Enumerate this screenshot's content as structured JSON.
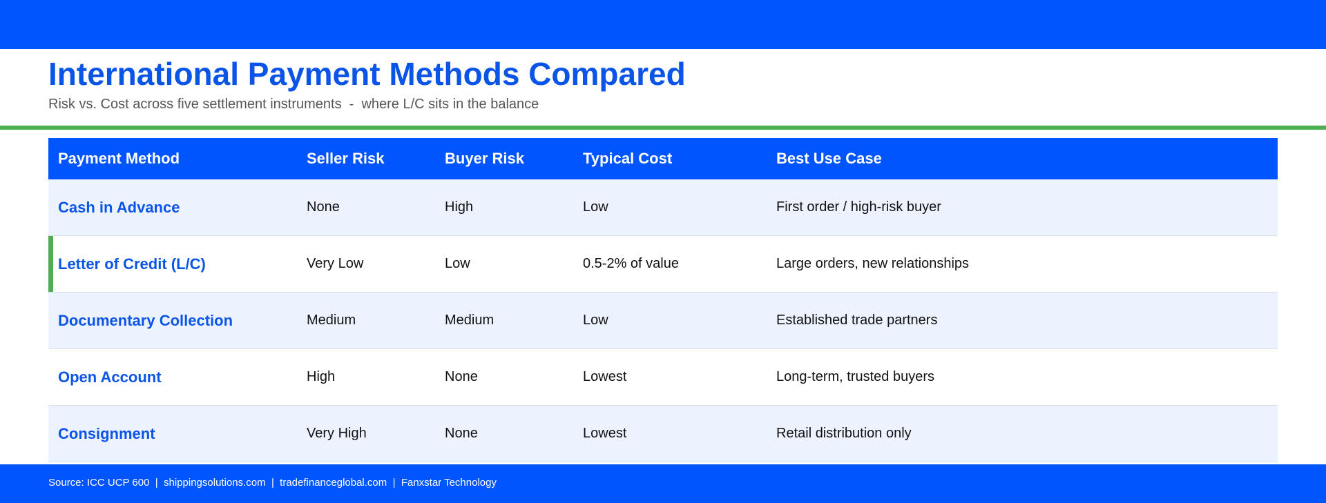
{
  "header": {
    "title": "International Payment Methods Compared",
    "subtitle": "Risk vs. Cost across five settlement instruments  -  where L/C sits in the balance"
  },
  "table": {
    "columns": [
      "Payment Method",
      "Seller Risk",
      "Buyer Risk",
      "Typical Cost",
      "Best Use Case"
    ],
    "rows": [
      [
        "Cash in Advance",
        "None",
        "High",
        "Low",
        "First order / high-risk buyer"
      ],
      [
        "Letter of Credit (L/C)",
        "Very Low",
        "Low",
        "0.5-2% of value",
        "Large orders, new relationships"
      ],
      [
        "Documentary Collection",
        "Medium",
        "Medium",
        "Low",
        "Established trade partners"
      ],
      [
        "Open Account",
        "High",
        "None",
        "Lowest",
        "Long-term, trusted buyers"
      ],
      [
        "Consignment",
        "Very High",
        "None",
        "Lowest",
        "Retail distribution only"
      ]
    ]
  },
  "footer": {
    "source": "Source: ICC UCP 600  |  shippingsolutions.com  |  tradefinanceglobal.com  |  Fanxstar Technology"
  }
}
